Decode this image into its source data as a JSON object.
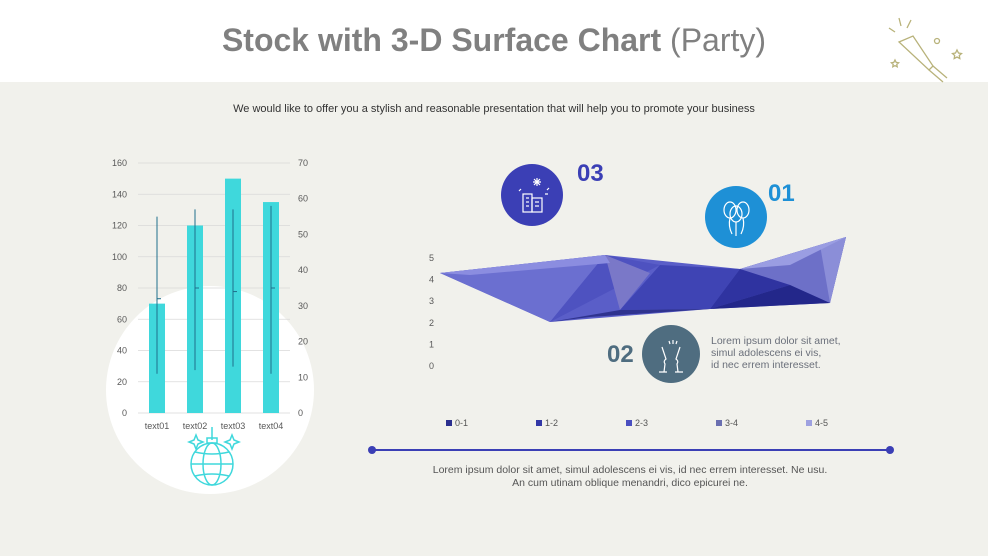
{
  "title_bold": "Stock with 3-D Surface Chart",
  "title_normal": "(Party)",
  "subtitle": "We would like to offer you a stylish and reasonable presentation that will help you to promote your business",
  "colors": {
    "bar": "#3fd8dc",
    "accent_blue": "#3b3fb5",
    "light_blue": "#1e90d6",
    "slate": "#4f6d80",
    "bg": "#f1f1ec"
  },
  "items": [
    {
      "num": "03",
      "icon": "building-fireworks-icon"
    },
    {
      "num": "01",
      "icon": "balloons-icon"
    },
    {
      "num": "02",
      "icon": "champagne-toast-icon"
    }
  ],
  "item_text_lines": [
    "Lorem ipsum dolor sit amet,",
    "simul adolescens ei vis,",
    "id nec errem interesset."
  ],
  "bottom_lines": [
    "Lorem ipsum dolor sit amet, simul adolescens ei vis, id nec errem interesset. Ne usu.",
    "An cum utinam oblique menandri, dico epicurei ne."
  ],
  "chart_data": [
    {
      "type": "bar",
      "categories": [
        "text01",
        "text02",
        "text03",
        "text04"
      ],
      "values": [
        70,
        120,
        150,
        135
      ],
      "ylim": [
        0,
        160
      ],
      "yticks": [
        "0",
        "20",
        "40",
        "60",
        "80",
        "100",
        "120",
        "140",
        "160"
      ],
      "y2lim": [
        0,
        70
      ],
      "y2ticks": [
        "0",
        "10",
        "20",
        "30",
        "40",
        "50",
        "60",
        "70"
      ],
      "stock_series": {
        "high": [
          55,
          57,
          57,
          58
        ],
        "low": [
          11,
          12,
          13,
          11
        ],
        "close": [
          32,
          35,
          34,
          35
        ]
      },
      "grid": true
    },
    {
      "type": "area",
      "subtype": "3d-surface",
      "ylim": [
        0,
        5
      ],
      "yticks": [
        "0",
        "1",
        "2",
        "3",
        "4",
        "5"
      ],
      "legend": [
        "0-1",
        "1-2",
        "2-3",
        "3-4",
        "4-5"
      ],
      "legend_colors": [
        "#2b2f8f",
        "#3237a6",
        "#4a4fc0",
        "#6a6fb0",
        "#9ea1e0"
      ],
      "legend_position": "bottom"
    }
  ]
}
